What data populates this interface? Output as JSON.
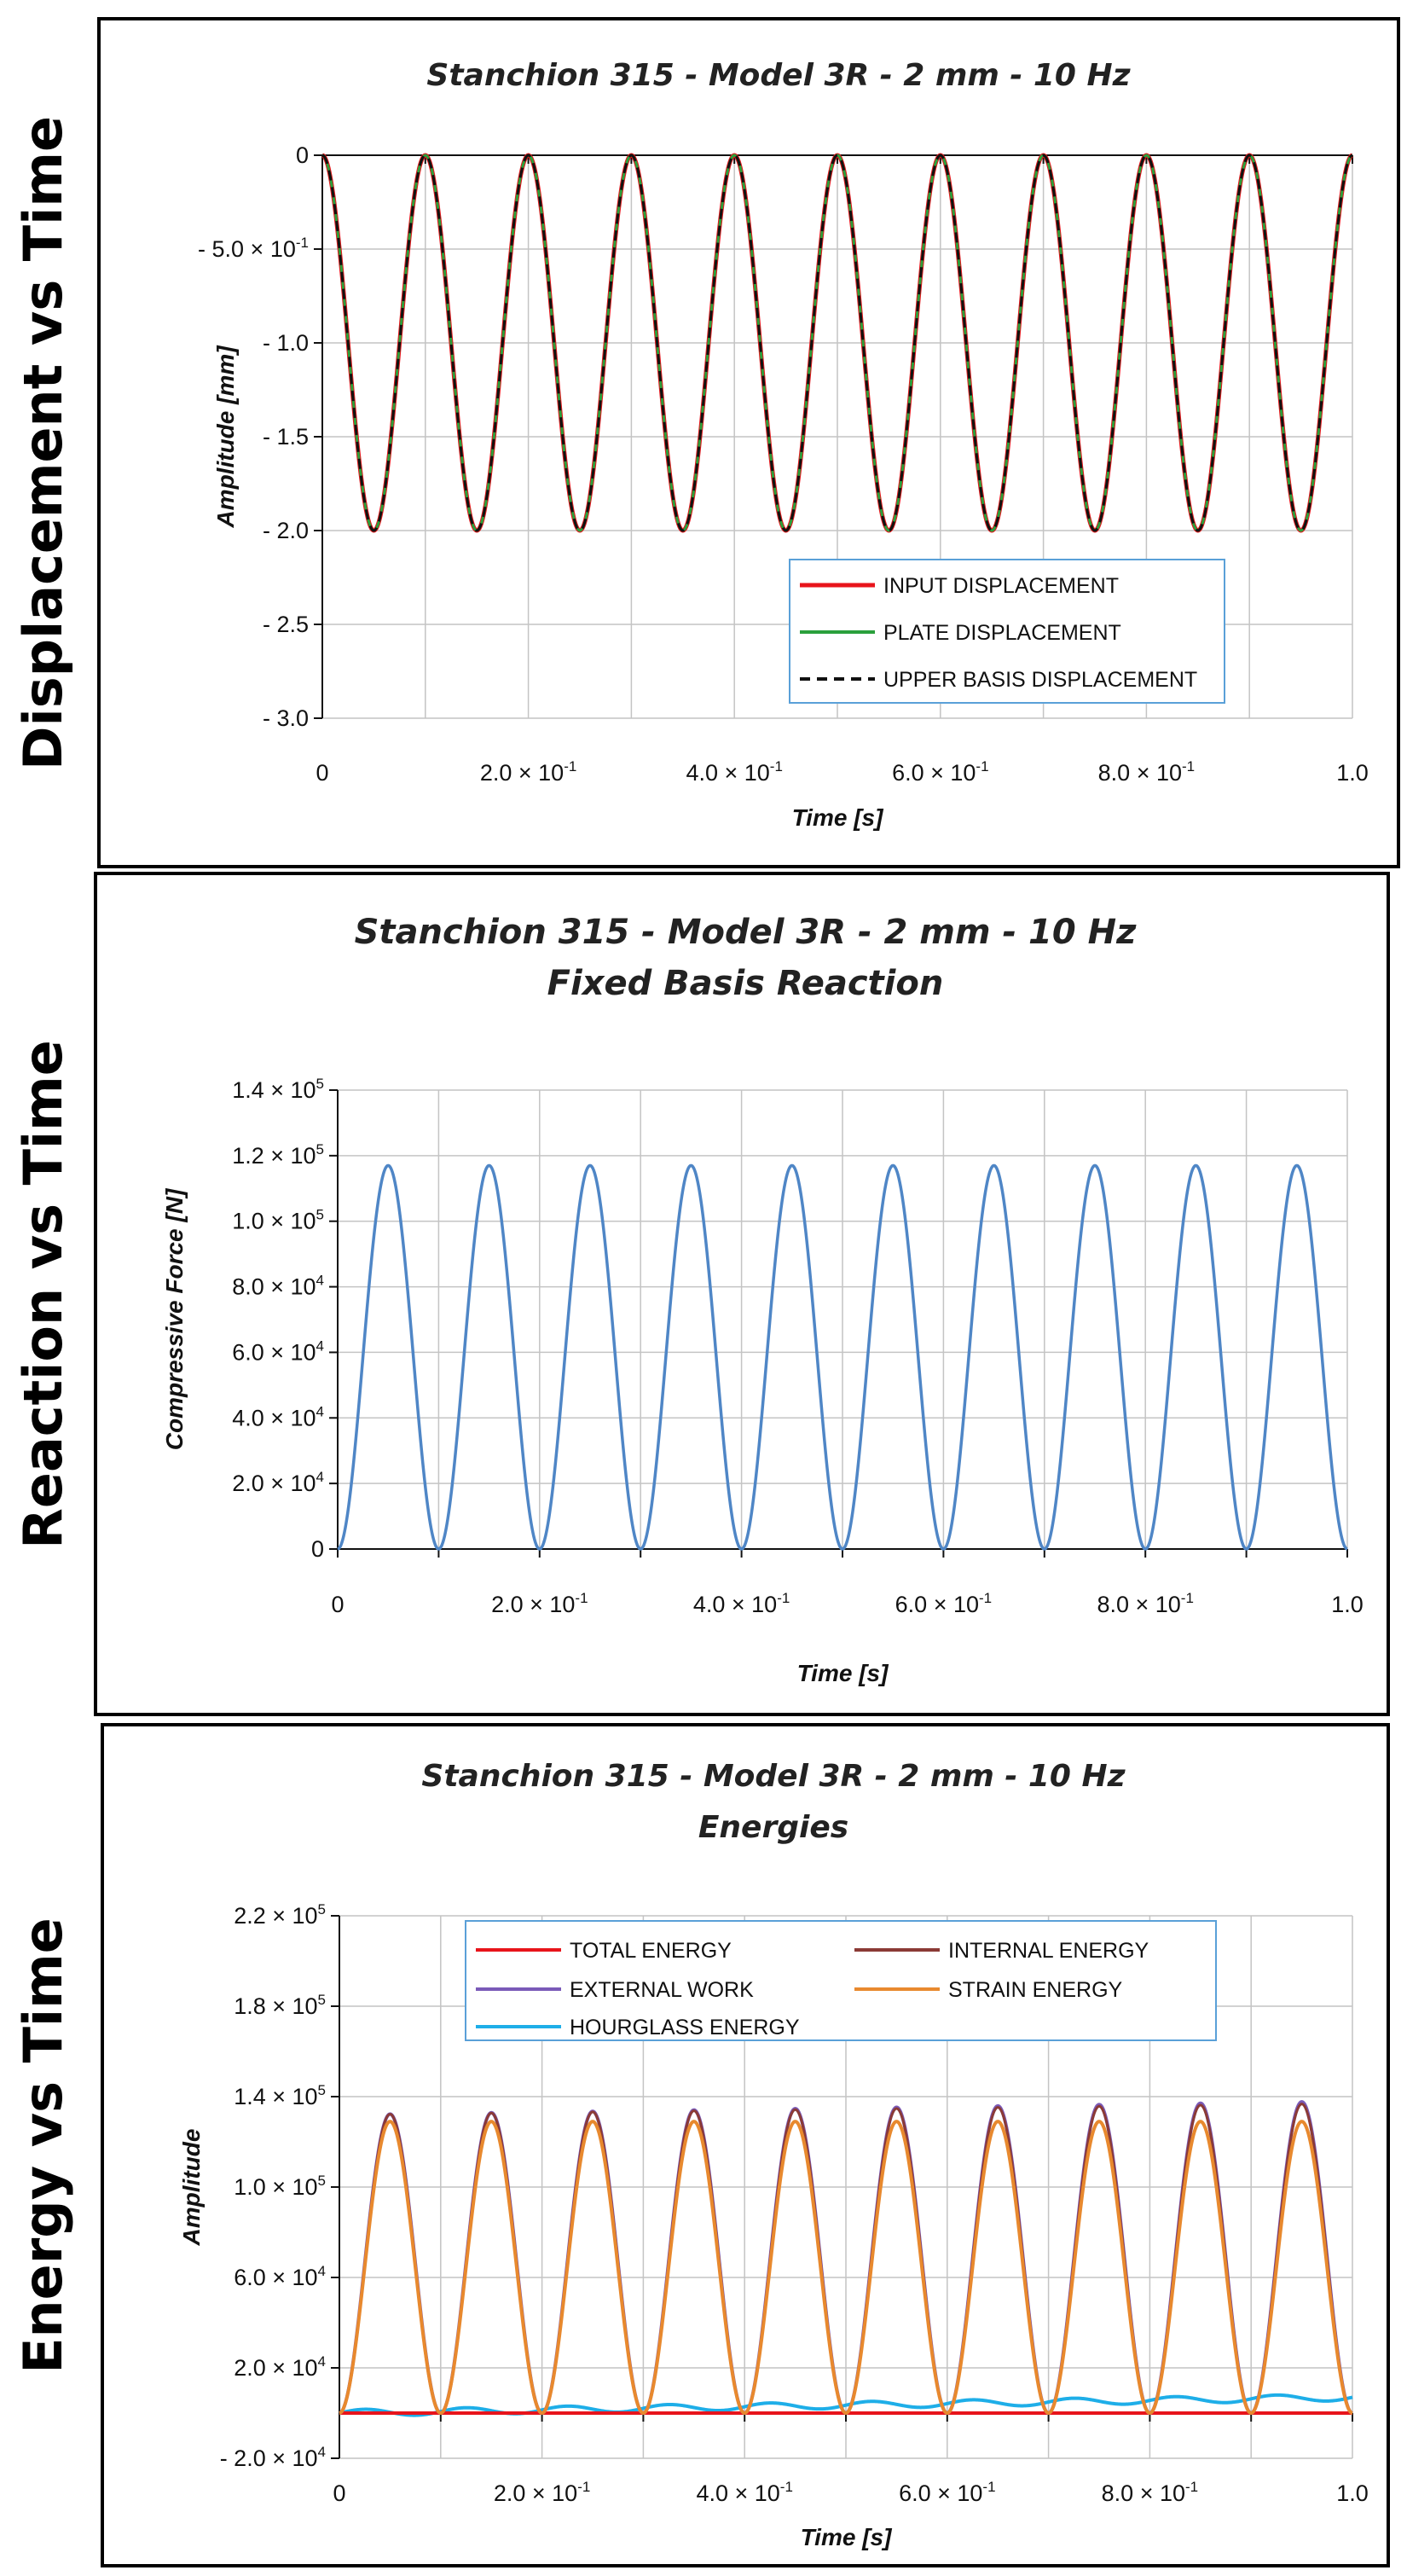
{
  "side_labels": [
    "Displacement vs Time",
    "Reaction vs Time",
    "Energy vs Time"
  ],
  "chart_data": [
    {
      "type": "line",
      "title": "Stanchion 315 - Model 3R - 2 mm - 10 Hz",
      "subtitle": "",
      "xlabel": "Time [s]",
      "ylabel": "Amplitude [mm]",
      "xlim": [
        0,
        1.0
      ],
      "ylim": [
        -3.0,
        0
      ],
      "grid": true,
      "legend_position": "bottom-right",
      "x_ticks": [
        0,
        0.1,
        0.2,
        0.3,
        0.4,
        0.5,
        0.6,
        0.7,
        0.8,
        0.9,
        1.0
      ],
      "x_tick_labels": [
        {
          "value": 0,
          "base": "0"
        },
        {
          "value": 0.2,
          "base": "2.0 × 10",
          "exp": "-1"
        },
        {
          "value": 0.4,
          "base": "4.0 × 10",
          "exp": "-1"
        },
        {
          "value": 0.6,
          "base": "6.0 × 10",
          "exp": "-1"
        },
        {
          "value": 0.8,
          "base": "8.0 × 10",
          "exp": "-1"
        },
        {
          "value": 1.0,
          "base": "1.0"
        }
      ],
      "y_tick_labels": [
        {
          "value": 0,
          "base": "0"
        },
        {
          "value": -0.5,
          "base": "- 5.0 × 10",
          "exp": "-1"
        },
        {
          "value": -1.0,
          "base": "- 1.0"
        },
        {
          "value": -1.5,
          "base": "- 1.5"
        },
        {
          "value": -2.0,
          "base": "- 2.0"
        },
        {
          "value": -2.5,
          "base": "- 2.5"
        },
        {
          "value": -3.0,
          "base": "- 3.0"
        }
      ],
      "series": [
        {
          "name": "INPUT DISPLACEMENT",
          "color": "#e8141b",
          "width": 5,
          "dash": "",
          "form": "neg_cos",
          "amplitude": 2.0,
          "frequency_hz": 10
        },
        {
          "name": "PLATE DISPLACEMENT",
          "color": "#2aa03c",
          "width": 3,
          "dash": "",
          "form": "neg_cos",
          "amplitude": 2.0,
          "frequency_hz": 10
        },
        {
          "name": "UPPER BASIS DISPLACEMENT",
          "color": "#111111",
          "width": 3,
          "dash": "12,8",
          "form": "neg_cos",
          "amplitude": 2.0,
          "frequency_hz": 10
        }
      ]
    },
    {
      "type": "line",
      "title": "Stanchion 315 - Model 3R - 2 mm - 10 Hz",
      "subtitle": "Fixed Basis Reaction",
      "xlabel": "Time [s]",
      "ylabel": "Compressive Force [N]",
      "xlim": [
        0,
        1.0
      ],
      "ylim": [
        0,
        140000
      ],
      "grid": true,
      "x_ticks": [
        0,
        0.1,
        0.2,
        0.3,
        0.4,
        0.5,
        0.6,
        0.7,
        0.8,
        0.9,
        1.0
      ],
      "x_tick_labels": [
        {
          "value": 0,
          "base": "0"
        },
        {
          "value": 0.2,
          "base": "2.0 × 10",
          "exp": "-1"
        },
        {
          "value": 0.4,
          "base": "4.0 × 10",
          "exp": "-1"
        },
        {
          "value": 0.6,
          "base": "6.0 × 10",
          "exp": "-1"
        },
        {
          "value": 0.8,
          "base": "8.0 × 10",
          "exp": "-1"
        },
        {
          "value": 1.0,
          "base": "1.0"
        }
      ],
      "y_tick_labels": [
        {
          "value": 0,
          "base": "0"
        },
        {
          "value": 20000,
          "base": "2.0 × 10",
          "exp": "4"
        },
        {
          "value": 40000,
          "base": "4.0 × 10",
          "exp": "4"
        },
        {
          "value": 60000,
          "base": "6.0 × 10",
          "exp": "4"
        },
        {
          "value": 80000,
          "base": "8.0 × 10",
          "exp": "4"
        },
        {
          "value": 100000,
          "base": "1.0 × 10",
          "exp": "5"
        },
        {
          "value": 120000,
          "base": "1.2 × 10",
          "exp": "5"
        },
        {
          "value": 140000,
          "base": "1.4 × 10",
          "exp": "5"
        }
      ],
      "series": [
        {
          "name": "Fixed Basis Reaction",
          "color": "#4f86c6",
          "width": 3.5,
          "dash": "",
          "form": "one_minus_cos",
          "amplitude": 117000,
          "frequency_hz": 10
        }
      ]
    },
    {
      "type": "line",
      "title": "Stanchion 315 - Model 3R - 2 mm - 10 Hz",
      "subtitle": "Energies",
      "xlabel": "Time [s]",
      "ylabel": "Amplitude",
      "xlim": [
        0,
        1.0
      ],
      "ylim": [
        -20000,
        220000
      ],
      "grid": true,
      "legend_position": "top",
      "x_ticks": [
        0,
        0.1,
        0.2,
        0.3,
        0.4,
        0.5,
        0.6,
        0.7,
        0.8,
        0.9,
        1.0
      ],
      "x_tick_labels": [
        {
          "value": 0,
          "base": "0"
        },
        {
          "value": 0.2,
          "base": "2.0 × 10",
          "exp": "-1"
        },
        {
          "value": 0.4,
          "base": "4.0 × 10",
          "exp": "-1"
        },
        {
          "value": 0.6,
          "base": "6.0 × 10",
          "exp": "-1"
        },
        {
          "value": 0.8,
          "base": "8.0 × 10",
          "exp": "-1"
        },
        {
          "value": 1.0,
          "base": "1.0"
        }
      ],
      "y_tick_labels": [
        {
          "value": -20000,
          "base": "- 2.0 × 10",
          "exp": "4"
        },
        {
          "value": 20000,
          "base": "2.0 × 10",
          "exp": "4"
        },
        {
          "value": 60000,
          "base": "6.0 × 10",
          "exp": "4"
        },
        {
          "value": 100000,
          "base": "1.0 × 10",
          "exp": "5"
        },
        {
          "value": 140000,
          "base": "1.4 × 10",
          "exp": "5"
        },
        {
          "value": 180000,
          "base": "1.8 × 10",
          "exp": "5"
        },
        {
          "value": 220000,
          "base": "2.2 × 10",
          "exp": "5"
        }
      ],
      "series": [
        {
          "name": "TOTAL ENERGY",
          "color": "#e8141b",
          "width": 4,
          "dash": "",
          "form": "constant",
          "value": 0
        },
        {
          "name": "INTERNAL ENERGY",
          "color": "#8b3a36",
          "width": 3,
          "dash": "",
          "form": "cos_sq",
          "amplitude": 132000,
          "amplitude_end": 137000,
          "frequency_hz": 10
        },
        {
          "name": "EXTERNAL WORK",
          "color": "#7a5ab8",
          "width": 4,
          "dash": "",
          "form": "cos_sq",
          "amplitude": 132000,
          "amplitude_end": 138000,
          "frequency_hz": 10
        },
        {
          "name": "STRAIN ENERGY",
          "color": "#e8892e",
          "width": 4,
          "dash": "",
          "form": "cos_sq",
          "amplitude": 129000,
          "amplitude_end": 129000,
          "frequency_hz": 10
        },
        {
          "name": "HOURGLASS ENERGY",
          "color": "#1eaee8",
          "width": 4,
          "dash": "",
          "form": "drift",
          "start": 0,
          "end": 7000,
          "ripple": 1500,
          "frequency_hz": 10
        }
      ]
    }
  ]
}
